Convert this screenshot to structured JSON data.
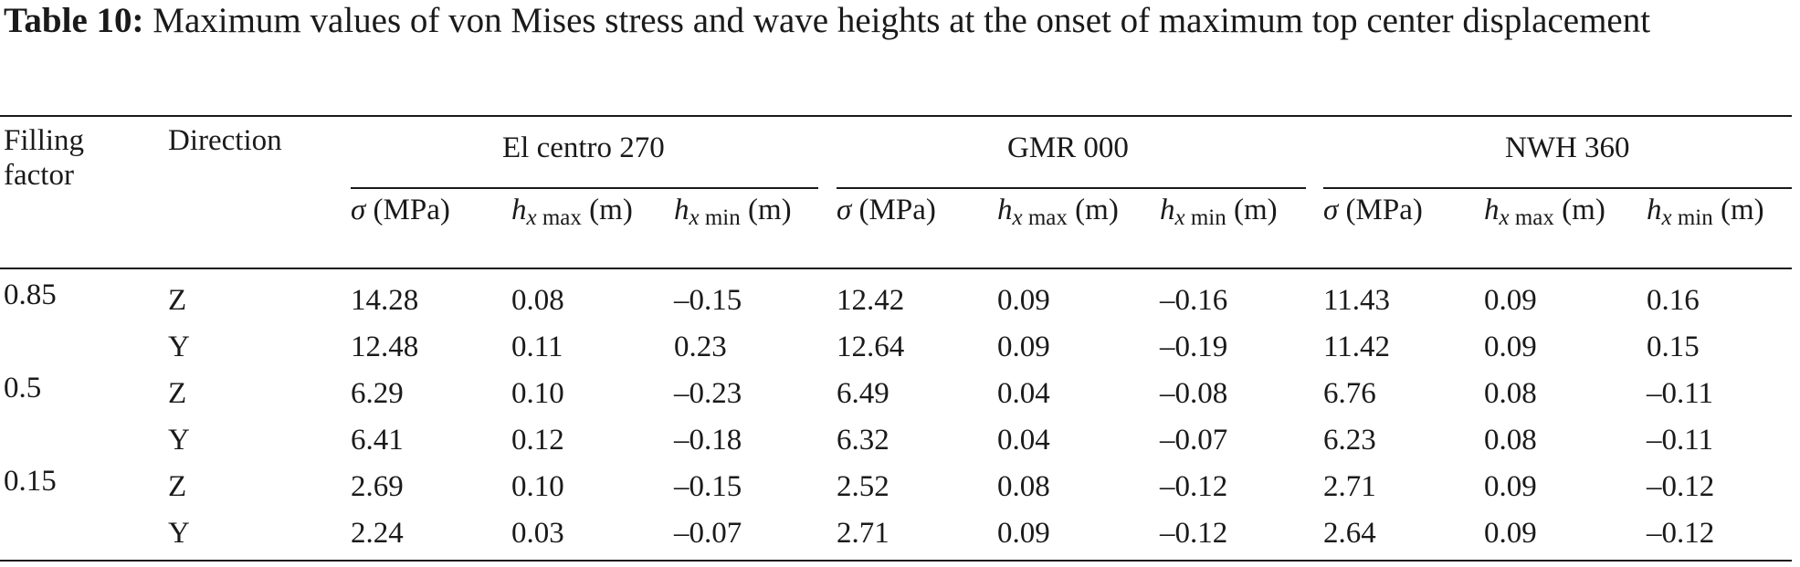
{
  "caption": {
    "label": "Table 10:",
    "text": "Maximum values of von Mises stress and wave heights at the onset of maximum top center displacement"
  },
  "headers": {
    "filling_factor_line1": "Filling",
    "filling_factor_line2": "factor",
    "direction": "Direction",
    "groups": [
      "El centro 270",
      "GMR 000",
      "NWH 360"
    ],
    "sigma_symbol": "σ",
    "sigma_unit": "(MPa)",
    "h_symbol": "h",
    "h_sub_x": "x",
    "h_sub_max": "max",
    "h_sub_min": "min",
    "h_unit": "(m)"
  },
  "rows": [
    {
      "filling": "0.85",
      "direction": "Z",
      "values": [
        "14.28",
        "0.08",
        "–0.15",
        "12.42",
        "0.09",
        "–0.16",
        "11.43",
        "0.09",
        "0.16"
      ]
    },
    {
      "filling": "",
      "direction": "Y",
      "values": [
        "12.48",
        "0.11",
        "0.23",
        "12.64",
        "0.09",
        "–0.19",
        "11.42",
        "0.09",
        "0.15"
      ]
    },
    {
      "filling": "0.5",
      "direction": "Z",
      "values": [
        "6.29",
        "0.10",
        "–0.23",
        "6.49",
        "0.04",
        "–0.08",
        "6.76",
        "0.08",
        "–0.11"
      ]
    },
    {
      "filling": "",
      "direction": "Y",
      "values": [
        "6.41",
        "0.12",
        "–0.18",
        "6.32",
        "0.04",
        "–0.07",
        "6.23",
        "0.08",
        "–0.11"
      ]
    },
    {
      "filling": "0.15",
      "direction": "Z",
      "values": [
        "2.69",
        "0.10",
        "–0.15",
        "2.52",
        "0.08",
        "–0.12",
        "2.71",
        "0.09",
        "–0.12"
      ]
    },
    {
      "filling": "",
      "direction": "Y",
      "values": [
        "2.24",
        "0.03",
        "–0.07",
        "2.71",
        "0.09",
        "–0.12",
        "2.64",
        "0.09",
        "–0.12"
      ]
    }
  ]
}
